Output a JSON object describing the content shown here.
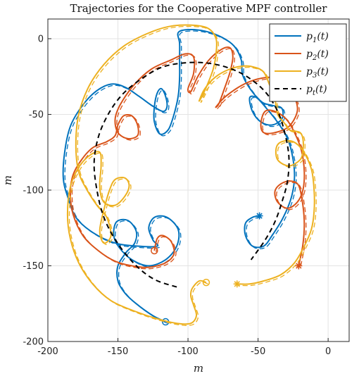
{
  "chart_data": {
    "type": "line",
    "title": "Trajectories for the Cooperative MPF controller",
    "xlabel": "m",
    "ylabel": "m",
    "xlim": [
      -200,
      15
    ],
    "ylim": [
      -200,
      13
    ],
    "xticks": [
      -200,
      -150,
      -100,
      -50,
      0
    ],
    "yticks": [
      0,
      -50,
      -100,
      -150,
      -200
    ],
    "xtick_labels": [
      "-200",
      "-150",
      "-100",
      "-50",
      "0"
    ],
    "ytick_labels": [
      "0",
      "-50",
      "-100",
      "-150",
      "-200"
    ],
    "grid": true,
    "legend_position": "top-right",
    "legend": [
      {
        "label": "p1(t)",
        "base": "p",
        "sub": "1",
        "suffix": "(t)",
        "color": "#0072BD",
        "dash": false
      },
      {
        "label": "p2(t)",
        "base": "p",
        "sub": "2",
        "suffix": "(t)",
        "color": "#D95319",
        "dash": false
      },
      {
        "label": "p3(t)",
        "base": "p",
        "sub": "3",
        "suffix": "(t)",
        "color": "#EDB120",
        "dash": false
      },
      {
        "label": "pt(t)",
        "base": "p",
        "sub": "t",
        "suffix": "(t)",
        "color": "#000000",
        "dash": true
      }
    ],
    "series": [
      {
        "name": "p1(t)",
        "color": "#0072BD",
        "start": [
          -116,
          -187
        ],
        "end": [
          -49,
          -117
        ],
        "points": [
          [
            -116,
            -187
          ],
          [
            -125,
            -183
          ],
          [
            -137,
            -175
          ],
          [
            -145,
            -168
          ],
          [
            -150,
            -160
          ],
          [
            -150,
            -150
          ],
          [
            -144,
            -141
          ],
          [
            -138,
            -135
          ],
          [
            -137,
            -127
          ],
          [
            -143,
            -120
          ],
          [
            -151,
            -121
          ],
          [
            -153,
            -130
          ],
          [
            -149,
            -138
          ],
          [
            -140,
            -146
          ],
          [
            -128,
            -150
          ],
          [
            -116,
            -146
          ],
          [
            -108,
            -137
          ],
          [
            -107,
            -126
          ],
          [
            -115,
            -118
          ],
          [
            -124,
            -118
          ],
          [
            -128,
            -125
          ],
          [
            -125,
            -133
          ],
          [
            -122,
            -137
          ],
          [
            -136,
            -137
          ],
          [
            -152,
            -135
          ],
          [
            -168,
            -128
          ],
          [
            -180,
            -118
          ],
          [
            -186,
            -104
          ],
          [
            -189,
            -92
          ],
          [
            -188,
            -75
          ],
          [
            -184,
            -58
          ],
          [
            -176,
            -45
          ],
          [
            -166,
            -35
          ],
          [
            -155,
            -30
          ],
          [
            -145,
            -32
          ],
          [
            -135,
            -38
          ],
          [
            -126,
            -44
          ],
          [
            -118,
            -48
          ],
          [
            -115,
            -45
          ],
          [
            -116,
            -38
          ],
          [
            -119,
            -33
          ],
          [
            -122,
            -36
          ],
          [
            -124,
            -45
          ],
          [
            -124,
            -55
          ],
          [
            -120,
            -63
          ],
          [
            -114,
            -60
          ],
          [
            -110,
            -50
          ],
          [
            -107,
            -38
          ],
          [
            -106,
            -26
          ],
          [
            -106,
            -14
          ],
          [
            -106,
            -3
          ],
          [
            -107,
            4
          ],
          [
            -100,
            6
          ],
          [
            -88,
            5
          ],
          [
            -76,
            1
          ],
          [
            -67,
            -5
          ],
          [
            -62,
            -14
          ],
          [
            -61,
            -24
          ],
          [
            -55,
            -34
          ],
          [
            -47,
            -42
          ],
          [
            -40,
            -44
          ],
          [
            -33,
            -46
          ],
          [
            -33,
            -53
          ],
          [
            -40,
            -57
          ],
          [
            -48,
            -55
          ],
          [
            -54,
            -48
          ],
          [
            -56,
            -39
          ],
          [
            -51,
            -39
          ],
          [
            -44,
            -46
          ],
          [
            -37,
            -54
          ],
          [
            -30,
            -64
          ],
          [
            -26,
            -75
          ],
          [
            -24,
            -90
          ],
          [
            -26,
            -104
          ],
          [
            -32,
            -118
          ],
          [
            -40,
            -130
          ],
          [
            -46,
            -137
          ],
          [
            -54,
            -137
          ],
          [
            -59,
            -130
          ],
          [
            -59,
            -122
          ],
          [
            -54,
            -118
          ],
          [
            -49,
            -117
          ]
        ]
      },
      {
        "name": "p2(t)",
        "color": "#D95319",
        "start": [
          -124,
          -140
        ],
        "end": [
          -21,
          -150
        ],
        "points": [
          [
            -124,
            -140
          ],
          [
            -122,
            -132
          ],
          [
            -118,
            -130
          ],
          [
            -112,
            -134
          ],
          [
            -110,
            -142
          ],
          [
            -116,
            -148
          ],
          [
            -128,
            -151
          ],
          [
            -140,
            -150
          ],
          [
            -152,
            -147
          ],
          [
            -164,
            -140
          ],
          [
            -175,
            -130
          ],
          [
            -182,
            -116
          ],
          [
            -184,
            -102
          ],
          [
            -182,
            -90
          ],
          [
            -176,
            -80
          ],
          [
            -168,
            -72
          ],
          [
            -158,
            -68
          ],
          [
            -152,
            -64
          ],
          [
            -150,
            -57
          ],
          [
            -146,
            -51
          ],
          [
            -140,
            -51
          ],
          [
            -136,
            -57
          ],
          [
            -136,
            -64
          ],
          [
            -143,
            -66
          ],
          [
            -150,
            -62
          ],
          [
            -152,
            -53
          ],
          [
            -148,
            -43
          ],
          [
            -138,
            -30
          ],
          [
            -126,
            -20
          ],
          [
            -112,
            -14
          ],
          [
            -102,
            -10
          ],
          [
            -96,
            -12
          ],
          [
            -96,
            -23
          ],
          [
            -100,
            -33
          ],
          [
            -98,
            -35
          ],
          [
            -93,
            -25
          ],
          [
            -85,
            -14
          ],
          [
            -76,
            -7
          ],
          [
            -70,
            -6
          ],
          [
            -68,
            -12
          ],
          [
            -70,
            -22
          ],
          [
            -74,
            -33
          ],
          [
            -78,
            -43
          ],
          [
            -80,
            -45
          ],
          [
            -73,
            -38
          ],
          [
            -60,
            -30
          ],
          [
            -47,
            -26
          ],
          [
            -36,
            -26
          ],
          [
            -28,
            -30
          ],
          [
            -24,
            -38
          ],
          [
            -22,
            -48
          ],
          [
            -28,
            -58
          ],
          [
            -38,
            -62
          ],
          [
            -46,
            -62
          ],
          [
            -48,
            -56
          ],
          [
            -45,
            -48
          ],
          [
            -38,
            -48
          ],
          [
            -30,
            -53
          ],
          [
            -24,
            -62
          ],
          [
            -19,
            -74
          ],
          [
            -17,
            -88
          ],
          [
            -18,
            -100
          ],
          [
            -22,
            -108
          ],
          [
            -29,
            -112
          ],
          [
            -36,
            -108
          ],
          [
            -38,
            -101
          ],
          [
            -34,
            -96
          ],
          [
            -27,
            -94
          ],
          [
            -21,
            -97
          ],
          [
            -18,
            -110
          ],
          [
            -17,
            -123
          ],
          [
            -18,
            -136
          ],
          [
            -21,
            -150
          ]
        ]
      },
      {
        "name": "p3(t)",
        "color": "#EDB120",
        "start": [
          -87,
          -161
        ],
        "end": [
          -65,
          -162
        ],
        "points": [
          [
            -87,
            -161
          ],
          [
            -92,
            -160
          ],
          [
            -97,
            -165
          ],
          [
            -98,
            -170
          ],
          [
            -96,
            -176
          ],
          [
            -94,
            -183
          ],
          [
            -98,
            -188
          ],
          [
            -108,
            -188
          ],
          [
            -122,
            -185
          ],
          [
            -138,
            -180
          ],
          [
            -155,
            -173
          ],
          [
            -168,
            -162
          ],
          [
            -178,
            -148
          ],
          [
            -184,
            -132
          ],
          [
            -186,
            -116
          ],
          [
            -184,
            -98
          ],
          [
            -178,
            -85
          ],
          [
            -170,
            -77
          ],
          [
            -163,
            -75
          ],
          [
            -162,
            -84
          ],
          [
            -163,
            -98
          ],
          [
            -160,
            -108
          ],
          [
            -152,
            -110
          ],
          [
            -145,
            -104
          ],
          [
            -142,
            -97
          ],
          [
            -145,
            -92
          ],
          [
            -152,
            -93
          ],
          [
            -156,
            -100
          ],
          [
            -160,
            -113
          ],
          [
            -163,
            -127
          ],
          [
            -160,
            -135
          ],
          [
            -155,
            -130
          ],
          [
            -158,
            -118
          ],
          [
            -165,
            -110
          ],
          [
            -172,
            -100
          ],
          [
            -178,
            -88
          ],
          [
            -180,
            -70
          ],
          [
            -178,
            -50
          ],
          [
            -171,
            -32
          ],
          [
            -160,
            -17
          ],
          [
            -146,
            -5
          ],
          [
            -130,
            3
          ],
          [
            -114,
            8
          ],
          [
            -98,
            9
          ],
          [
            -86,
            7
          ],
          [
            -80,
            0
          ],
          [
            -80,
            -10
          ],
          [
            -82,
            -20
          ],
          [
            -86,
            -30
          ],
          [
            -90,
            -38
          ],
          [
            -92,
            -41
          ],
          [
            -88,
            -33
          ],
          [
            -80,
            -25
          ],
          [
            -70,
            -20
          ],
          [
            -60,
            -18
          ],
          [
            -52,
            -19
          ],
          [
            -46,
            -22
          ],
          [
            -42,
            -30
          ],
          [
            -38,
            -40
          ],
          [
            -36,
            -50
          ],
          [
            -31,
            -56
          ],
          [
            -28,
            -60
          ],
          [
            -24,
            -61
          ],
          [
            -20,
            -62
          ],
          [
            -18,
            -66
          ],
          [
            -18,
            -74
          ],
          [
            -20,
            -80
          ],
          [
            -28,
            -84
          ],
          [
            -36,
            -80
          ],
          [
            -37,
            -72
          ],
          [
            -33,
            -68
          ],
          [
            -25,
            -68
          ],
          [
            -18,
            -74
          ],
          [
            -12,
            -86
          ],
          [
            -10,
            -100
          ],
          [
            -10,
            -114
          ],
          [
            -12,
            -126
          ],
          [
            -17,
            -137
          ],
          [
            -24,
            -148
          ],
          [
            -34,
            -156
          ],
          [
            -46,
            -160
          ],
          [
            -56,
            -162
          ],
          [
            -65,
            -162
          ]
        ]
      },
      {
        "name": "pt(t)",
        "color": "#000000",
        "dash": true,
        "points": [
          [
            -108,
            -164
          ],
          [
            -124,
            -159
          ],
          [
            -138,
            -149
          ],
          [
            -151,
            -134
          ],
          [
            -160,
            -118
          ],
          [
            -165,
            -100
          ],
          [
            -167,
            -82
          ],
          [
            -164,
            -65
          ],
          [
            -157,
            -50
          ],
          [
            -147,
            -37
          ],
          [
            -134,
            -27
          ],
          [
            -119,
            -19
          ],
          [
            -103,
            -16
          ],
          [
            -87,
            -16
          ],
          [
            -72,
            -19
          ],
          [
            -58,
            -25
          ],
          [
            -45,
            -35
          ],
          [
            -36,
            -48
          ],
          [
            -31,
            -62
          ],
          [
            -28,
            -78
          ],
          [
            -29,
            -94
          ],
          [
            -33,
            -108
          ],
          [
            -38,
            -121
          ],
          [
            -45,
            -133
          ],
          [
            -55,
            -146
          ]
        ]
      }
    ]
  }
}
